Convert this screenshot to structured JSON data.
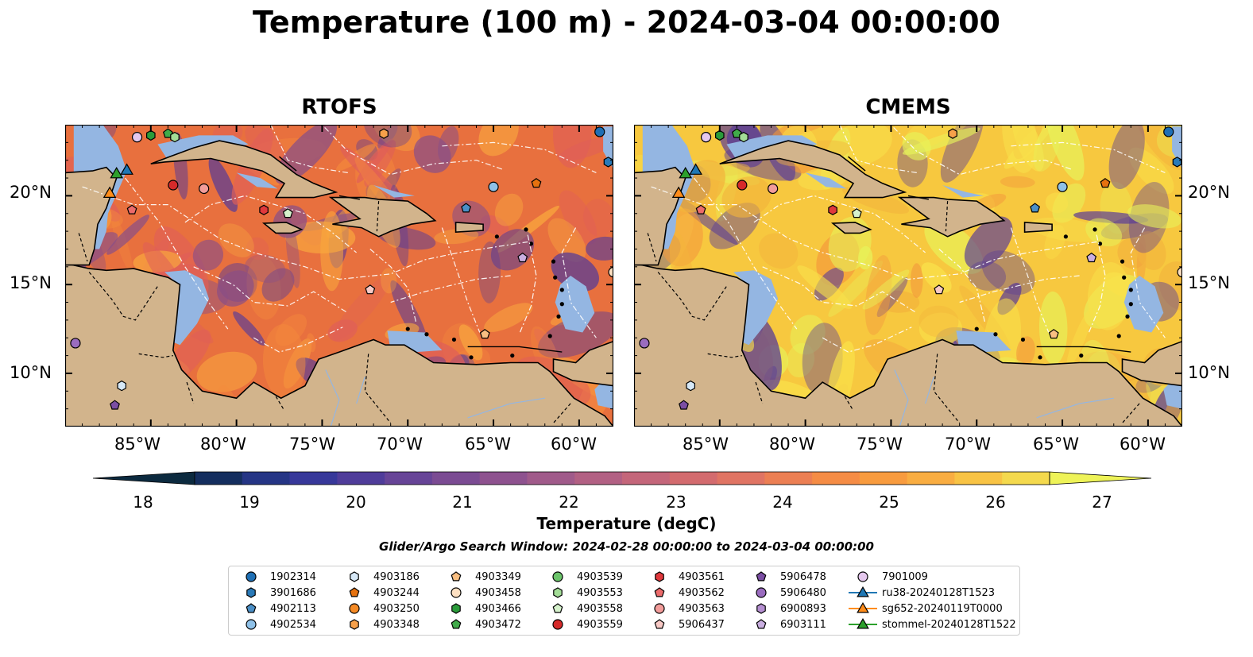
{
  "title": "Temperature (100 m) - 2024-03-04 00:00:00",
  "panels": [
    {
      "title": "RTOFS",
      "palette": [
        "#e8703e",
        "#f58a3c",
        "#f9a83e",
        "#8a4f86",
        "#5a3c96",
        "#e05f58"
      ]
    },
    {
      "title": "CMEMS",
      "palette": [
        "#f7c83f",
        "#f3b43c",
        "#f9e14a",
        "#f39a3c",
        "#5a3c96",
        "#e7f35a"
      ]
    }
  ],
  "map": {
    "lon_range": [
      -90,
      -58
    ],
    "lat_range": [
      7,
      24
    ],
    "lat_ticks": [
      {
        "value": 20,
        "label": "20°N"
      },
      {
        "value": 15,
        "label": "15°N"
      },
      {
        "value": 10,
        "label": "10°N"
      }
    ],
    "lon_ticks": [
      {
        "value": -85,
        "label": "85°W"
      },
      {
        "value": -80,
        "label": "80°W"
      },
      {
        "value": -75,
        "label": "75°W"
      },
      {
        "value": -70,
        "label": "70°W"
      },
      {
        "value": -65,
        "label": "65°W"
      },
      {
        "value": -60,
        "label": "60°W"
      }
    ],
    "land_color": "#d2b48c",
    "shelf_color": "#94b6e2",
    "pacific_color": "#0a2233"
  },
  "colorbar": {
    "label": "Temperature (degC)",
    "min": 18,
    "max": 27,
    "step": 0.5,
    "ticks": [
      "18",
      "19",
      "20",
      "21",
      "22",
      "23",
      "24",
      "25",
      "26",
      "27"
    ],
    "colors": [
      "#0c2a3f",
      "#142e5e",
      "#253585",
      "#37389a",
      "#4f3c9a",
      "#674497",
      "#7b4b93",
      "#8e528f",
      "#a05a8a",
      "#b26083",
      "#c4667a",
      "#d36b6e",
      "#e07463",
      "#ec7f53",
      "#f58c45",
      "#f89b3e",
      "#f9ad41",
      "#f8c344",
      "#f4d94d",
      "#eef358"
    ]
  },
  "search_window": "Glider/Argo Search Window: 2024-02-28 00:00:00 to 2024-03-04 00:00:00",
  "legend": [
    {
      "label": "1902314",
      "marker": "circle",
      "color": "#1f6fb4"
    },
    {
      "label": "3901686",
      "marker": "hexagon",
      "color": "#2a7ab8"
    },
    {
      "label": "4902113",
      "marker": "pentagon",
      "color": "#4b8fc6"
    },
    {
      "label": "4902534",
      "marker": "circle",
      "color": "#8fc1e8"
    },
    {
      "label": "4903186",
      "marker": "hexagon",
      "color": "#d6e8f7"
    },
    {
      "label": "4903244",
      "marker": "pentagon",
      "color": "#e6720f"
    },
    {
      "label": "4903250",
      "marker": "circle",
      "color": "#f58a25"
    },
    {
      "label": "4903348",
      "marker": "hexagon",
      "color": "#f7a04a"
    },
    {
      "label": "4903349",
      "marker": "pentagon",
      "color": "#f9bf82"
    },
    {
      "label": "4903458",
      "marker": "circle",
      "color": "#fde0c2"
    },
    {
      "label": "4903466",
      "marker": "hexagon",
      "color": "#2a9b3a"
    },
    {
      "label": "4903472",
      "marker": "pentagon",
      "color": "#41ab4a"
    },
    {
      "label": "4903539",
      "marker": "circle",
      "color": "#6cc46b"
    },
    {
      "label": "4903553",
      "marker": "hexagon",
      "color": "#a3dd97"
    },
    {
      "label": "4903558",
      "marker": "pentagon",
      "color": "#d6f2cc"
    },
    {
      "label": "4903559",
      "marker": "circle",
      "color": "#d62a2a"
    },
    {
      "label": "4903561",
      "marker": "hexagon",
      "color": "#e0383c"
    },
    {
      "label": "4903562",
      "marker": "pentagon",
      "color": "#ec6b6b"
    },
    {
      "label": "4903563",
      "marker": "circle",
      "color": "#f29c9a"
    },
    {
      "label": "5906437",
      "marker": "pentagon",
      "color": "#f8c9c5"
    },
    {
      "label": "5906478",
      "marker": "pentagon",
      "color": "#7b4ea3"
    },
    {
      "label": "5906480",
      "marker": "circle",
      "color": "#9a6cbf"
    },
    {
      "label": "6900893",
      "marker": "hexagon",
      "color": "#b58fd1"
    },
    {
      "label": "6903111",
      "marker": "pentagon",
      "color": "#c9aee0"
    },
    {
      "label": "7901009",
      "marker": "circle",
      "color": "#e5c8ee"
    },
    {
      "label": "ru38-20240128T1523",
      "marker": "triangle",
      "color": "#1f77b4"
    },
    {
      "label": "sg652-20240119T0000",
      "marker": "triangle",
      "color": "#ff8c1a"
    },
    {
      "label": "stommel-20240128T1522",
      "marker": "triangle",
      "color": "#2ca02c"
    }
  ],
  "floats": [
    {
      "label": "1902314",
      "lon": -58.8,
      "lat": 23.6
    },
    {
      "label": "3901686",
      "lon": -58.3,
      "lat": 21.9
    },
    {
      "label": "4902113",
      "lon": -66.6,
      "lat": 19.3
    },
    {
      "label": "4902534",
      "lon": -65.0,
      "lat": 20.5
    },
    {
      "label": "4903186",
      "lon": -86.7,
      "lat": 9.3
    },
    {
      "label": "4903244",
      "lon": -62.5,
      "lat": 20.7
    },
    {
      "label": "4903349",
      "lon": -65.5,
      "lat": 12.2
    },
    {
      "label": "4903458",
      "lon": -58.0,
      "lat": 15.7
    },
    {
      "label": "4903348",
      "lon": -71.4,
      "lat": 23.5
    },
    {
      "label": "4903466",
      "lon": -85.0,
      "lat": 23.4
    },
    {
      "label": "4903472",
      "lon": -84.0,
      "lat": 23.5
    },
    {
      "label": "4903553",
      "lon": -83.6,
      "lat": 23.3
    },
    {
      "label": "4903558",
      "lon": -77.0,
      "lat": 19.0
    },
    {
      "label": "4903559",
      "lon": -83.7,
      "lat": 20.6
    },
    {
      "label": "4903561",
      "lon": -78.4,
      "lat": 19.2
    },
    {
      "label": "4903562",
      "lon": -86.1,
      "lat": 19.2
    },
    {
      "label": "4903563",
      "lon": -81.9,
      "lat": 20.4
    },
    {
      "label": "5906437",
      "lon": -72.2,
      "lat": 14.7
    },
    {
      "label": "5906478",
      "lon": -87.1,
      "lat": 8.2
    },
    {
      "label": "5906480",
      "lon": -89.4,
      "lat": 11.7
    },
    {
      "label": "6903111",
      "lon": -63.3,
      "lat": 16.5
    },
    {
      "label": "7901009",
      "lon": -85.8,
      "lat": 23.3
    }
  ],
  "gliders": [
    {
      "label": "ru38-20240128T1523",
      "lon": -86.4,
      "lat": 21.4
    },
    {
      "label": "sg652-20240119T0000",
      "lon": -87.4,
      "lat": 20.1
    },
    {
      "label": "stommel-20240128T1522",
      "lon": -87.0,
      "lat": 21.2
    }
  ]
}
